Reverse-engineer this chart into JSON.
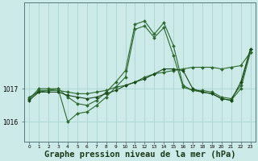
{
  "background_color": "#cceae7",
  "plot_bg_color": "#cceae7",
  "grid_color": "#aad4d0",
  "xlabel": "Graphe pression niveau de la mer (hPa)",
  "xlabel_fontsize": 7.5,
  "yticks": [
    1016,
    1017
  ],
  "ylim": [
    1015.4,
    1019.6
  ],
  "xlim": [
    -0.5,
    23.5
  ],
  "xticks": [
    0,
    1,
    2,
    3,
    4,
    5,
    6,
    7,
    8,
    9,
    10,
    11,
    12,
    13,
    14,
    15,
    16,
    17,
    18,
    19,
    20,
    21,
    22,
    23
  ],
  "series": [
    {
      "x": [
        0,
        1,
        2,
        3,
        4,
        5,
        6,
        7,
        8,
        9,
        10,
        11,
        12,
        13,
        14,
        15,
        16,
        17,
        18,
        19,
        20,
        21,
        22,
        23
      ],
      "y": [
        1016.75,
        1016.9,
        1016.95,
        1016.95,
        1016.9,
        1016.85,
        1016.85,
        1016.9,
        1016.95,
        1017.05,
        1017.1,
        1017.2,
        1017.35,
        1017.45,
        1017.5,
        1017.55,
        1017.6,
        1017.65,
        1017.65,
        1017.65,
        1017.6,
        1017.65,
        1017.7,
        1018.1
      ],
      "marker": "D",
      "markersize": 2.0,
      "linewidth": 0.8,
      "color": "#2d6a2d"
    },
    {
      "x": [
        0,
        1,
        2,
        3,
        4,
        5,
        6,
        7,
        8,
        9,
        10,
        11,
        12,
        13,
        14,
        15,
        16,
        17,
        18,
        19,
        20,
        21,
        22,
        23
      ],
      "y": [
        1016.7,
        1016.95,
        1016.95,
        1017.0,
        1016.75,
        1016.55,
        1016.5,
        1016.65,
        1016.9,
        1017.2,
        1017.55,
        1018.95,
        1019.05,
        1018.65,
        1019.0,
        1018.3,
        1017.1,
        1016.95,
        1016.95,
        1016.9,
        1016.75,
        1016.7,
        1017.1,
        1018.2
      ],
      "marker": "D",
      "markersize": 2.0,
      "linewidth": 0.8,
      "color": "#2d6a2d"
    },
    {
      "x": [
        0,
        1,
        2,
        3,
        4,
        5,
        6,
        7,
        8,
        9,
        10,
        11,
        12,
        13,
        14,
        15,
        16,
        17,
        18,
        19,
        20,
        21,
        22,
        23
      ],
      "y": [
        1016.7,
        1017.0,
        1017.0,
        1017.0,
        1016.0,
        1016.25,
        1016.3,
        1016.5,
        1016.75,
        1017.05,
        1017.35,
        1018.8,
        1018.9,
        1018.55,
        1018.85,
        1018.0,
        1017.05,
        1016.95,
        1016.9,
        1016.85,
        1016.7,
        1016.65,
        1017.0,
        1018.1
      ],
      "marker": "D",
      "markersize": 2.0,
      "linewidth": 0.8,
      "color": "#2d6a2d"
    },
    {
      "x": [
        0,
        1,
        2,
        3,
        4,
        5,
        6,
        7,
        8,
        9,
        10,
        11,
        12,
        13,
        14,
        15,
        16,
        17,
        18,
        19,
        20,
        21,
        22,
        23
      ],
      "y": [
        1016.65,
        1016.9,
        1016.9,
        1016.9,
        1016.8,
        1016.75,
        1016.7,
        1016.75,
        1016.85,
        1016.95,
        1017.1,
        1017.2,
        1017.3,
        1017.45,
        1017.6,
        1017.6,
        1017.55,
        1017.0,
        1016.9,
        1016.85,
        1016.7,
        1016.65,
        1017.2,
        1018.2
      ],
      "marker": "D",
      "markersize": 2.0,
      "linewidth": 0.8,
      "color": "#1a4a1a"
    }
  ]
}
